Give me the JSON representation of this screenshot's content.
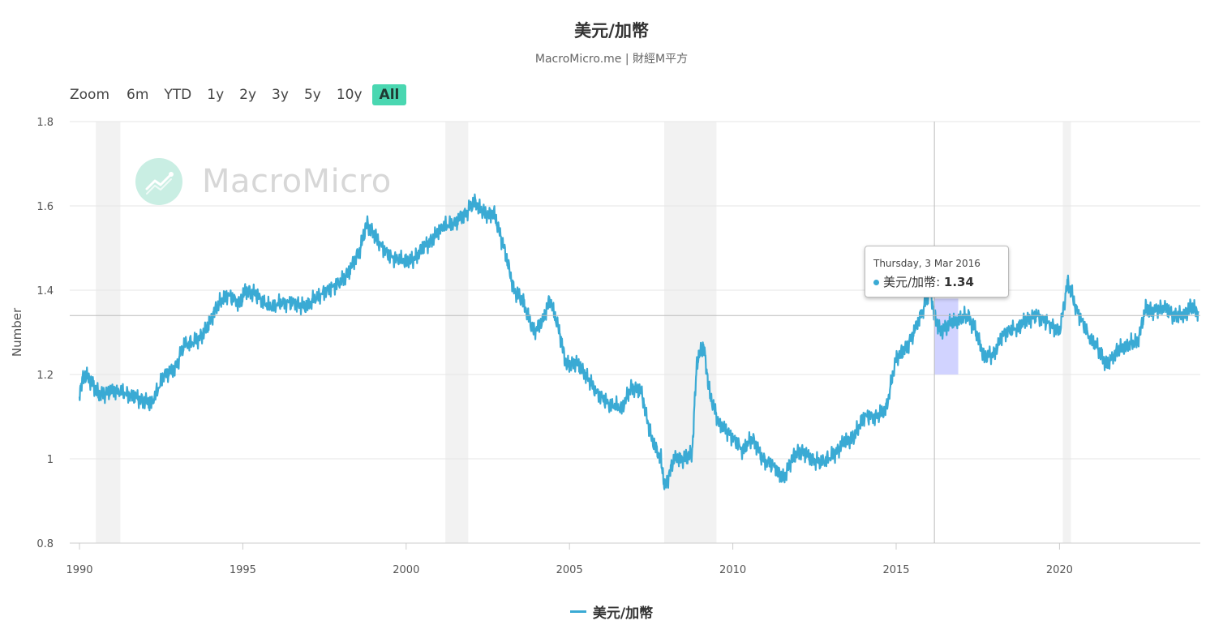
{
  "title": "美元/加幣",
  "subtitle": "MacroMicro.me | 財經M平方",
  "watermark": "MacroMicro",
  "range_selector": {
    "label": "Zoom",
    "buttons": [
      "6m",
      "YTD",
      "1y",
      "2y",
      "3y",
      "5y",
      "10y",
      "All"
    ],
    "active": "All"
  },
  "tooltip": {
    "date": "Thursday, 3 Mar 2016",
    "series": "美元/加幣",
    "value": "1.34"
  },
  "legend": [
    "美元/加幣"
  ],
  "colors": {
    "line": "#3aaad4",
    "active_button": "#4ad7b1",
    "recession": "#f2f2f2",
    "selection": "#c9cbff"
  },
  "chart_data": {
    "type": "line",
    "ylabel": "Number",
    "ylim": [
      0.8,
      1.8
    ],
    "yticks": [
      0.8,
      1,
      1.2,
      1.4,
      1.6,
      1.8
    ],
    "ytick_labels": [
      "0.8",
      "1",
      "1.2",
      "1.4",
      "1.6",
      "1.8"
    ],
    "xlim": [
      1990.0,
      2024.3
    ],
    "xticks": [
      1990,
      1995,
      2000,
      2005,
      2010,
      2015,
      2020
    ],
    "xtick_labels": [
      "1990",
      "1995",
      "2000",
      "2005",
      "2010",
      "2015",
      "2020"
    ],
    "recession_bands": [
      [
        1990.5,
        1991.25
      ],
      [
        2001.2,
        2001.9
      ],
      [
        2007.9,
        2009.5
      ],
      [
        2020.1,
        2020.35
      ]
    ],
    "crosshair": {
      "x": 2016.17,
      "y": 1.34
    },
    "highlight_range": {
      "x": [
        2016.17,
        2016.9
      ],
      "y": [
        1.2,
        1.38
      ]
    },
    "series": [
      {
        "name": "美元/加幣",
        "x": [
          1990.0,
          1990.15,
          1990.4,
          1990.6,
          1990.9,
          1991.2,
          1991.6,
          1991.9,
          1992.2,
          1992.6,
          1992.9,
          1993.2,
          1993.6,
          1993.9,
          1994.2,
          1994.5,
          1994.9,
          1995.1,
          1995.4,
          1995.8,
          1996.2,
          1996.6,
          1996.9,
          1997.2,
          1997.6,
          1998.0,
          1998.3,
          1998.6,
          1998.8,
          1999.1,
          1999.5,
          1999.9,
          2000.2,
          2000.5,
          2000.8,
          2001.1,
          2001.5,
          2001.8,
          2002.1,
          2002.4,
          2002.7,
          2003.0,
          2003.3,
          2003.6,
          2003.9,
          2004.2,
          2004.4,
          2004.7,
          2004.9,
          2005.2,
          2005.5,
          2005.8,
          2006.2,
          2006.6,
          2006.9,
          2007.2,
          2007.5,
          2007.8,
          2007.92,
          2008.2,
          2008.5,
          2008.75,
          2008.9,
          2009.1,
          2009.3,
          2009.6,
          2009.9,
          2010.3,
          2010.6,
          2010.9,
          2011.3,
          2011.55,
          2011.8,
          2012.1,
          2012.4,
          2012.7,
          2013.1,
          2013.4,
          2013.7,
          2014.0,
          2014.4,
          2014.7,
          2015.0,
          2015.3,
          2015.6,
          2015.9,
          2016.05,
          2016.17,
          2016.35,
          2016.6,
          2016.9,
          2017.2,
          2017.45,
          2017.7,
          2018.0,
          2018.3,
          2018.7,
          2019.0,
          2019.3,
          2019.7,
          2020.0,
          2020.25,
          2020.5,
          2020.9,
          2021.2,
          2021.45,
          2021.8,
          2022.1,
          2022.4,
          2022.65,
          2022.85,
          2023.2,
          2023.5,
          2023.8,
          2024.0,
          2024.25
        ],
        "y": [
          1.16,
          1.2,
          1.18,
          1.15,
          1.16,
          1.16,
          1.15,
          1.14,
          1.13,
          1.2,
          1.21,
          1.27,
          1.28,
          1.31,
          1.36,
          1.39,
          1.37,
          1.4,
          1.39,
          1.36,
          1.37,
          1.37,
          1.36,
          1.38,
          1.4,
          1.42,
          1.45,
          1.5,
          1.56,
          1.52,
          1.48,
          1.47,
          1.47,
          1.5,
          1.52,
          1.55,
          1.56,
          1.58,
          1.61,
          1.58,
          1.58,
          1.5,
          1.4,
          1.37,
          1.3,
          1.33,
          1.38,
          1.3,
          1.22,
          1.23,
          1.2,
          1.16,
          1.13,
          1.12,
          1.17,
          1.16,
          1.05,
          1.0,
          0.93,
          1.0,
          1.0,
          1.01,
          1.23,
          1.27,
          1.15,
          1.08,
          1.06,
          1.02,
          1.05,
          1.0,
          0.98,
          0.95,
          1.0,
          1.02,
          1.0,
          0.99,
          1.01,
          1.04,
          1.05,
          1.1,
          1.1,
          1.12,
          1.24,
          1.26,
          1.31,
          1.37,
          1.4,
          1.34,
          1.3,
          1.32,
          1.33,
          1.34,
          1.3,
          1.24,
          1.25,
          1.3,
          1.31,
          1.33,
          1.34,
          1.32,
          1.3,
          1.42,
          1.36,
          1.29,
          1.26,
          1.22,
          1.26,
          1.27,
          1.28,
          1.36,
          1.35,
          1.36,
          1.34,
          1.34,
          1.36,
          1.35
        ]
      }
    ]
  }
}
